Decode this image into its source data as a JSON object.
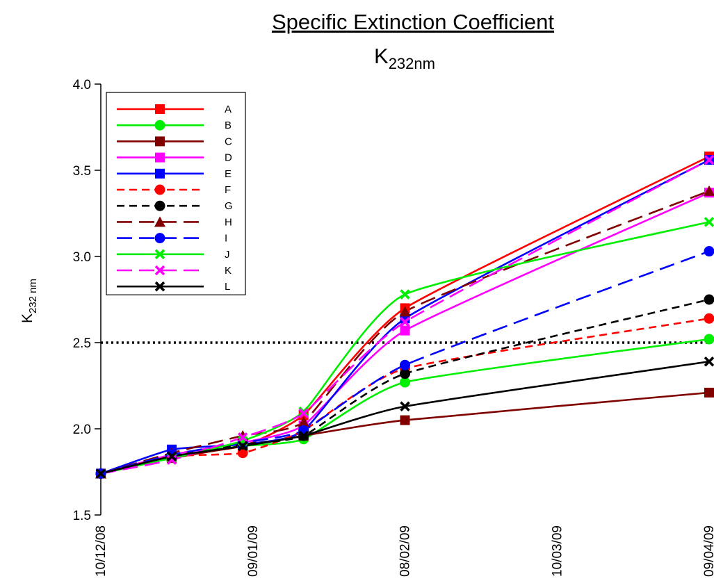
{
  "chart_data": {
    "type": "line",
    "title": "Specific Extinction Coefficient",
    "subtitle_main": "K",
    "subtitle_sub": "232nm",
    "ylabel_main": "K",
    "ylabel_sub": "232 nm",
    "xlabel": "",
    "x_dates": [
      "2008-12-10",
      "2008-12-24",
      "2009-01-07",
      "2009-01-19",
      "2009-02-08",
      "2009-04-09"
    ],
    "x_ticks": [
      {
        "date": "2008-12-10",
        "label": "10/12/08"
      },
      {
        "date": "2009-01-09",
        "label": "09/01/09"
      },
      {
        "date": "2009-02-08",
        "label": "08/02/09"
      },
      {
        "date": "2009-03-10",
        "label": "10/03/09"
      },
      {
        "date": "2009-04-09",
        "label": "09/04/09"
      }
    ],
    "ylim": [
      1.5,
      4.0
    ],
    "y_ticks": [
      "1.5",
      "2.0",
      "2.5",
      "3.0",
      "3.5",
      "4.0"
    ],
    "reference_line": {
      "y": 2.5,
      "style": "dotted",
      "color": "#000000"
    },
    "grid": false,
    "legend_position": "top-left",
    "series": [
      {
        "name": "A",
        "color": "#ff0000",
        "dash": "solid",
        "marker": "square",
        "values": [
          1.74,
          1.84,
          1.9,
          2.08,
          2.7,
          3.58
        ]
      },
      {
        "name": "B",
        "color": "#00ee00",
        "dash": "solid",
        "marker": "circle",
        "values": [
          1.74,
          1.84,
          1.9,
          1.94,
          2.27,
          2.52
        ]
      },
      {
        "name": "C",
        "color": "#800000",
        "dash": "solid",
        "marker": "square",
        "values": [
          1.74,
          1.83,
          1.9,
          1.96,
          2.05,
          2.21
        ]
      },
      {
        "name": "D",
        "color": "#ff00ff",
        "dash": "solid",
        "marker": "square",
        "values": [
          1.74,
          1.85,
          1.92,
          2.02,
          2.57,
          3.37
        ]
      },
      {
        "name": "E",
        "color": "#0000ff",
        "dash": "solid",
        "marker": "square",
        "values": [
          1.74,
          1.88,
          1.91,
          1.99,
          2.64,
          3.56
        ]
      },
      {
        "name": "F",
        "color": "#ff0000",
        "dash": "dash",
        "marker": "circle",
        "values": [
          1.74,
          1.84,
          1.86,
          1.99,
          2.35,
          2.64
        ]
      },
      {
        "name": "G",
        "color": "#000000",
        "dash": "dash",
        "marker": "circle",
        "values": [
          1.74,
          1.84,
          1.91,
          1.96,
          2.32,
          2.75
        ]
      },
      {
        "name": "H",
        "color": "#800000",
        "dash": "longdash",
        "marker": "triangle",
        "values": [
          1.74,
          1.86,
          1.96,
          2.04,
          2.68,
          3.38
        ]
      },
      {
        "name": "I",
        "color": "#0000ff",
        "dash": "longdash",
        "marker": "circle",
        "values": [
          1.74,
          1.85,
          1.92,
          1.99,
          2.37,
          3.03
        ]
      },
      {
        "name": "J",
        "color": "#00ee00",
        "dash": "solid",
        "marker": "x",
        "values": [
          1.74,
          1.83,
          1.93,
          2.1,
          2.78,
          3.2
        ]
      },
      {
        "name": "K",
        "color": "#ff00ff",
        "dash": "longdash",
        "marker": "x",
        "values": [
          1.74,
          1.82,
          1.95,
          2.09,
          2.62,
          3.56
        ]
      },
      {
        "name": "L",
        "color": "#000000",
        "dash": "solid",
        "marker": "x",
        "values": [
          1.74,
          1.84,
          1.9,
          1.96,
          2.13,
          2.39
        ]
      }
    ]
  }
}
